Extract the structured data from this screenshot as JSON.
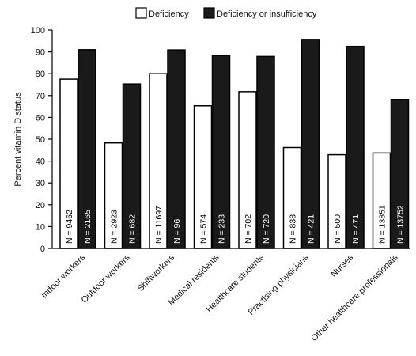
{
  "chart_data": {
    "type": "bar",
    "ylabel": "Percent vitamin D status",
    "ylim": [
      0,
      100
    ],
    "yticks": [
      0,
      10,
      20,
      30,
      40,
      50,
      60,
      70,
      80,
      90,
      100
    ],
    "legend_position": "top",
    "categories": [
      "Indoor workers",
      "Outdoor workers",
      "Shiftworkers",
      "Medical residents",
      "Healthcare students",
      "Practising physicians",
      "Nurses",
      "Other healthcare professionals"
    ],
    "series": [
      {
        "name": "Deficiency",
        "fill": "#ffffff",
        "values": [
          77.5,
          48.3,
          80.0,
          65.3,
          71.8,
          46.2,
          42.9,
          43.7
        ],
        "n_labels": [
          "N = 9462",
          "N = 2923",
          "N = 11697",
          "N = 574",
          "N = 702",
          "N = 838",
          "N = 500",
          "N = 13851"
        ]
      },
      {
        "name": "Deficiency or insufficiency",
        "fill": "#1a1a1a",
        "values": [
          91.0,
          75.3,
          90.9,
          88.3,
          87.9,
          95.7,
          92.5,
          68.2
        ],
        "n_labels": [
          "N = 2165",
          "N = 682",
          "N = 96",
          "N = 233",
          "N = 720",
          "N = 421",
          "N = 471",
          "N = 13752"
        ]
      }
    ]
  }
}
